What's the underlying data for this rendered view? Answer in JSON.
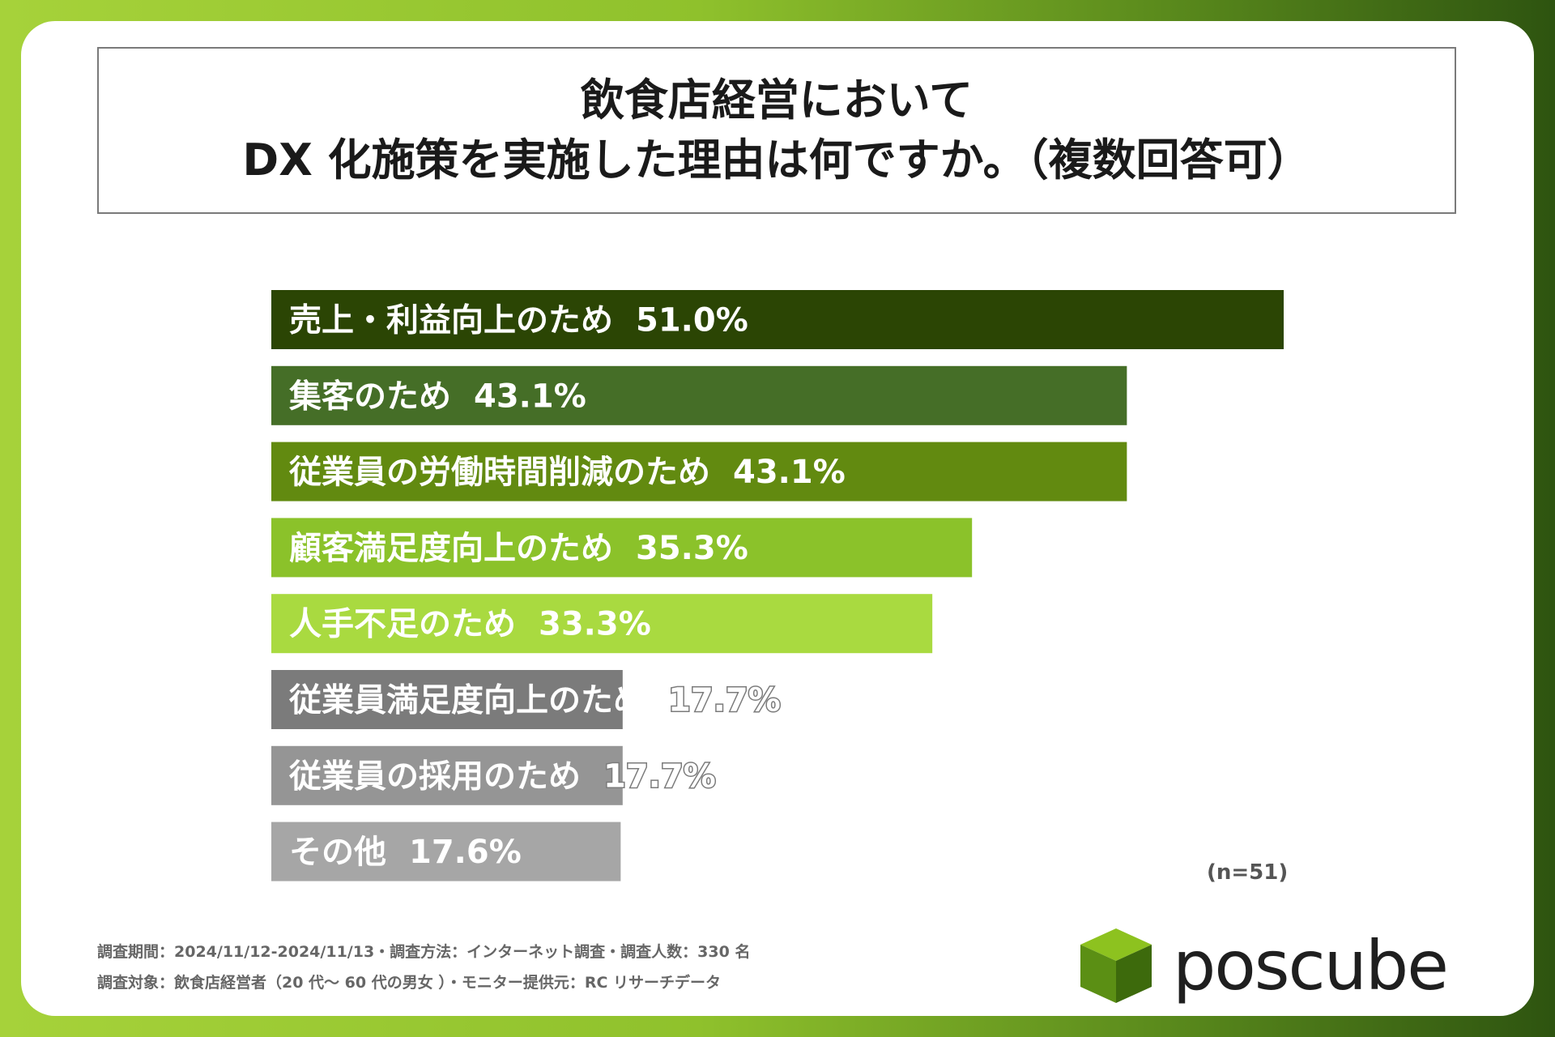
{
  "title": {
    "line1": "飲食店経営において",
    "line2": "DX 化施策を実施した理由は何ですか。（複数回答可）"
  },
  "chart_data": {
    "type": "bar",
    "orientation": "horizontal",
    "categories": [
      "売上・利益向上のため",
      "集客のため",
      "従業員の労働時間削減のため",
      "顧客満足度向上のため",
      "人手不足のため",
      "従業員満足度向上のため",
      "従業員の採用のため",
      "その他"
    ],
    "values": [
      51.0,
      43.1,
      43.1,
      35.3,
      33.3,
      17.7,
      17.7,
      17.6
    ],
    "value_labels": [
      "51.0%",
      "43.1%",
      "43.1%",
      "35.3%",
      "33.3%",
      "17.7%",
      "17.7%",
      "17.6%"
    ],
    "bar_colors": [
      "#2b4504",
      "#456e27",
      "#628a10",
      "#8bc22a",
      "#a9da40",
      "#7b7b7b",
      "#959595",
      "#a6a6a6"
    ],
    "label_colors": [
      "#ffffff",
      "#ffffff",
      "#ffffff",
      "#ffffff",
      "#ffffff",
      "#ffffff",
      "#ffffff",
      "#ffffff"
    ],
    "value_outlined": [
      false,
      false,
      false,
      false,
      false,
      true,
      true,
      false
    ],
    "xlim": [
      0,
      51
    ]
  },
  "n_label": "(n=51)",
  "footer": {
    "line1": "調査期間：2024/11/12-2024/11/13・調査方法：インターネット調査・調査人数：330 名",
    "line2": "調査対象：飲食店経営者（20 代～ 60 代の男女 ）・モニター提供元：RC リサーチデータ"
  },
  "logo": {
    "text": "poscube",
    "colors": {
      "top": "#8dc21f",
      "left": "#5b8f14",
      "right": "#3d6a0c"
    }
  }
}
